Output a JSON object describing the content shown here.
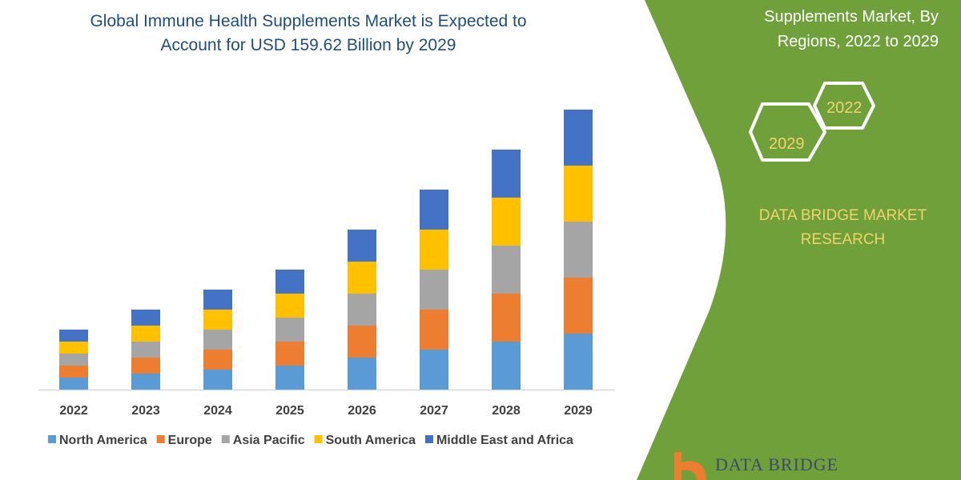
{
  "title_lines": [
    "Global Immune Health Supplements Market is Expected to",
    "Account for USD 159.62 Billion by 2029"
  ],
  "side_title_lines": [
    "Supplements Market, By",
    "Regions, 2022 to 2029"
  ],
  "hexagons": [
    "2022",
    "2029"
  ],
  "brand_lines": [
    "DATA BRIDGE MARKET",
    "RESEARCH"
  ],
  "logo_text": "DATA BRIDGE",
  "colors": {
    "panel": "#70a03a",
    "title": "#1f4e79",
    "brand": "#f2d36b"
  },
  "chart_data": {
    "type": "bar",
    "stacked": true,
    "categories": [
      "2022",
      "2023",
      "2024",
      "2025",
      "2026",
      "2027",
      "2028",
      "2029"
    ],
    "series": [
      {
        "name": "North America",
        "color": "#5b9bd5",
        "values": [
          3,
          4,
          5,
          6,
          8,
          10,
          12,
          14
        ]
      },
      {
        "name": "Europe",
        "color": "#ed7d31",
        "values": [
          3,
          4,
          5,
          6,
          8,
          10,
          12,
          14
        ]
      },
      {
        "name": "Asia Pacific",
        "color": "#a5a5a5",
        "values": [
          3,
          4,
          5,
          6,
          8,
          10,
          12,
          14
        ]
      },
      {
        "name": "South America",
        "color": "#ffc000",
        "values": [
          3,
          4,
          5,
          6,
          8,
          10,
          12,
          14
        ]
      },
      {
        "name": "Middle East and Africa",
        "color": "#4472c4",
        "values": [
          3,
          4,
          5,
          6,
          8,
          10,
          12,
          14
        ]
      }
    ],
    "y_axis_shown": false,
    "grid": false,
    "legend": "bottom"
  }
}
